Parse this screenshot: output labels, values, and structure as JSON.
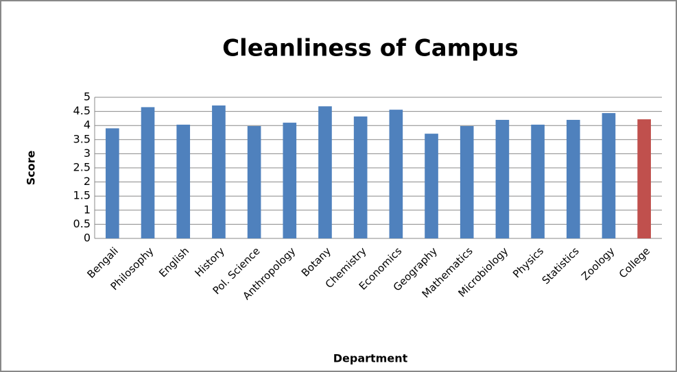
{
  "chart_data": {
    "type": "bar",
    "title": "Cleanliness of Campus",
    "xlabel": "Department",
    "ylabel": "Score",
    "categories": [
      "Bengali",
      "Philosophy",
      "English",
      "History",
      "Pol. Science",
      "Anthropology",
      "Botany",
      "Chemistry",
      "Economics",
      "Geography",
      "Mathematics",
      "Microbiology",
      "Physics",
      "Statistics",
      "Zoology",
      "College"
    ],
    "values": [
      3.9,
      4.65,
      4.03,
      4.71,
      3.98,
      4.1,
      4.68,
      4.32,
      4.56,
      3.71,
      3.98,
      4.2,
      4.03,
      4.2,
      4.44,
      4.22
    ],
    "colors": [
      "#4f81bd",
      "#4f81bd",
      "#4f81bd",
      "#4f81bd",
      "#4f81bd",
      "#4f81bd",
      "#4f81bd",
      "#4f81bd",
      "#4f81bd",
      "#4f81bd",
      "#4f81bd",
      "#4f81bd",
      "#4f81bd",
      "#4f81bd",
      "#4f81bd",
      "#c0504d"
    ],
    "ylim": [
      0,
      5
    ],
    "yticks": [
      0,
      0.5,
      1,
      1.5,
      2,
      2.5,
      3,
      3.5,
      4,
      4.5,
      5
    ],
    "grid": true
  }
}
